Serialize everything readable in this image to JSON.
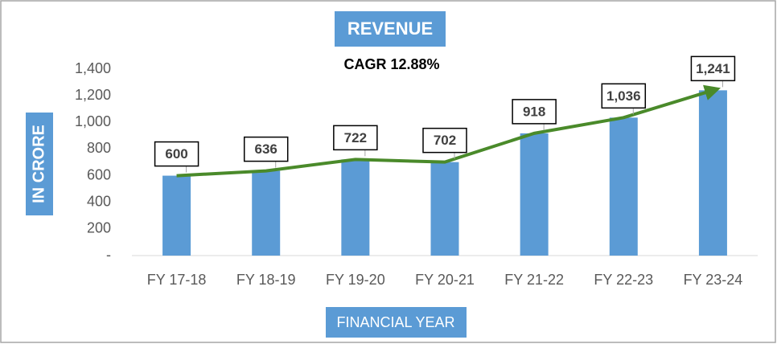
{
  "chart_data": {
    "type": "bar",
    "title": "REVENUE",
    "subtitle": "CAGR 12.88%",
    "x_label": "FINANCIAL YEAR",
    "y_label": "IN CRORE",
    "categories": [
      "FY 17-18",
      "FY 18-19",
      "FY 19-20",
      "FY 20-21",
      "FY 21-22",
      "FY 22-23",
      "FY 23-24"
    ],
    "values": [
      600,
      636,
      722,
      702,
      918,
      1036,
      1241
    ],
    "value_labels": [
      "600",
      "636",
      "722",
      "702",
      "918",
      "1,036",
      "1,241"
    ],
    "color": "#5b9bd5",
    "trend_line_color": "#4a8a2a",
    "ylim": [
      0,
      1400
    ],
    "yticks": [
      {
        "value": 0,
        "label": "-"
      },
      200,
      400,
      600,
      800,
      {
        "value": 1000,
        "label": "1,000"
      },
      {
        "value": 1200,
        "label": "1,200"
      },
      {
        "value": 1400,
        "label": "1,400"
      }
    ],
    "grid": false
  }
}
